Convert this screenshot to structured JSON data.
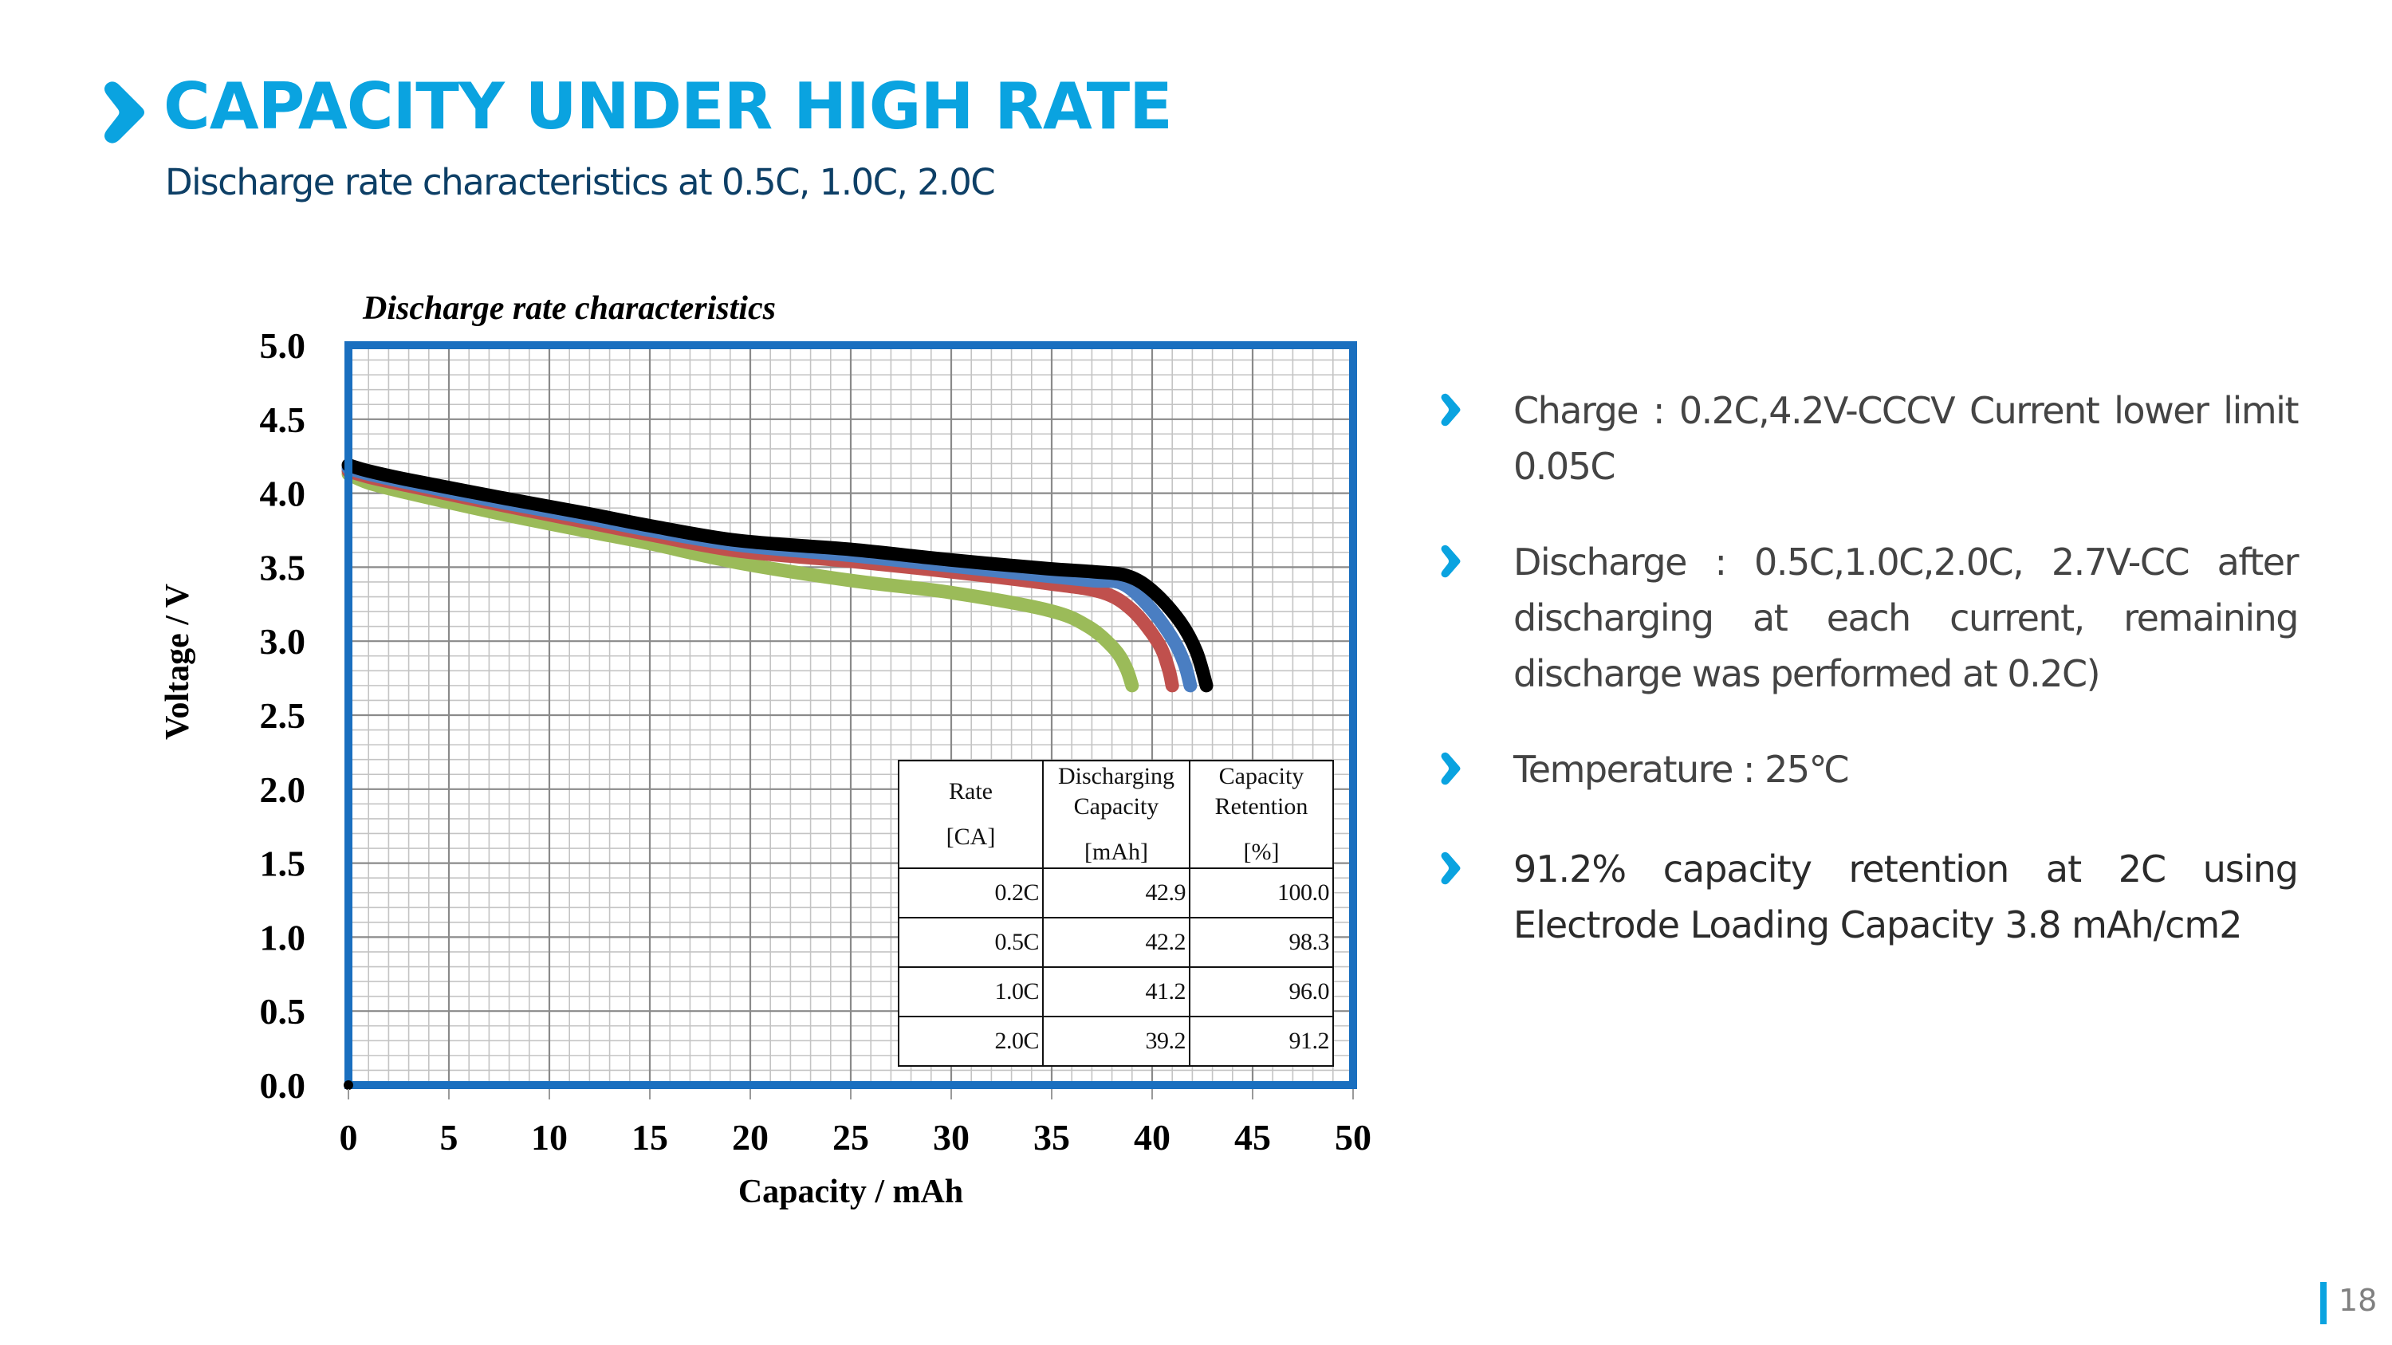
{
  "slide": {
    "title": "CAPACITY UNDER HIGH RATE",
    "subtitle": "Discharge rate characteristics at 0.5C, 1.0C, 2.0C",
    "title_icon": "chevron-right-icon",
    "accent_color": "#0aa3e0",
    "subtitle_color": "#0d3f66",
    "page_number": "18"
  },
  "bullets": [
    {
      "text": "Charge : 0.2C,4.2V-CCCV  Current lower limit 0.05C",
      "icon": "chevron-right-icon"
    },
    {
      "text": "Discharge : 0.5C,1.0C,2.0C, 2.7V-CC after discharging at each current, remaining discharge was performed at 0.2C)",
      "icon": "chevron-right-icon"
    },
    {
      "text": "Temperature : 25℃",
      "icon": "chevron-right-icon"
    },
    {
      "text": "91.2% capacity retention at 2C using Electrode Loading Capacity 3.8 mAh/cm2",
      "icon": "chevron-right-icon"
    }
  ],
  "results_table": {
    "headers": [
      {
        "label": "Rate",
        "unit": "[CA]"
      },
      {
        "label": "Discharging Capacity",
        "unit": "[mAh]"
      },
      {
        "label": "Capacity Retention",
        "unit": "[%]"
      }
    ],
    "rows": [
      [
        "0.2C",
        "42.9",
        "100.0"
      ],
      [
        "0.5C",
        "42.2",
        "98.3"
      ],
      [
        "1.0C",
        "41.2",
        "96.0"
      ],
      [
        "2.0C",
        "39.2",
        "91.2"
      ]
    ]
  },
  "chart_data": {
    "type": "line",
    "title": "Discharge rate characteristics",
    "xlabel": "Capacity / mAh",
    "ylabel": "Voltage / V",
    "xlim": [
      0,
      50
    ],
    "ylim": [
      0,
      5.0
    ],
    "xticks": [
      0,
      5,
      10,
      15,
      20,
      25,
      30,
      35,
      40,
      45,
      50
    ],
    "yticks": [
      0.0,
      0.5,
      1.0,
      1.5,
      2.0,
      2.5,
      3.0,
      3.5,
      4.0,
      4.5,
      5.0
    ],
    "xtick_labels": [
      "0",
      "5",
      "10",
      "15",
      "20",
      "25",
      "30",
      "35",
      "40",
      "45",
      "50"
    ],
    "ytick_labels": [
      "0.0",
      "0.5",
      "1.0",
      "1.5",
      "2.0",
      "2.5",
      "3.0",
      "3.5",
      "4.0",
      "4.5",
      "5.0"
    ],
    "grid": "major-and-minor",
    "minor_step_x": 1,
    "minor_step_y": 0.1,
    "frame_color": "#1a6fbf",
    "legend": "none (inset table bottom-right)",
    "series": [
      {
        "name": "0.2C",
        "color": "#000000",
        "x": [
          0,
          1,
          3,
          7.6,
          12,
          15,
          19.4,
          25,
          29.9,
          34.8,
          37,
          38.8,
          40.1,
          41.4,
          42.2,
          42.7
        ],
        "y": [
          4.19,
          4.15,
          4.09,
          3.97,
          3.86,
          3.78,
          3.68,
          3.62,
          3.55,
          3.49,
          3.47,
          3.44,
          3.33,
          3.13,
          2.93,
          2.7
        ]
      },
      {
        "name": "0.5C",
        "color": "#4a7ec2",
        "x": [
          0,
          1,
          3,
          7.6,
          12,
          15,
          19.4,
          25,
          29.9,
          34.8,
          37,
          38.5,
          39.8,
          41.0,
          41.6,
          41.9
        ],
        "y": [
          4.17,
          4.13,
          4.07,
          3.94,
          3.83,
          3.75,
          3.65,
          3.58,
          3.51,
          3.44,
          3.41,
          3.39,
          3.24,
          3.02,
          2.85,
          2.7
        ]
      },
      {
        "name": "1.0C",
        "color": "#c0504d",
        "x": [
          0,
          1,
          3,
          7.6,
          12,
          15,
          19.4,
          25,
          29.9,
          34.8,
          37.5,
          39.0,
          40.3,
          40.8,
          41.0
        ],
        "y": [
          4.15,
          4.11,
          4.05,
          3.92,
          3.8,
          3.72,
          3.61,
          3.54,
          3.47,
          3.39,
          3.33,
          3.21,
          2.99,
          2.82,
          2.7
        ]
      },
      {
        "name": "2.0C",
        "color": "#9bbb59",
        "x": [
          0,
          1,
          3,
          7.6,
          12,
          15,
          19.4,
          25,
          29.9,
          34.8,
          36.8,
          38.1,
          38.7,
          39.0
        ],
        "y": [
          4.13,
          4.07,
          4.0,
          3.86,
          3.74,
          3.66,
          3.53,
          3.41,
          3.33,
          3.21,
          3.1,
          2.95,
          2.82,
          2.7
        ]
      }
    ]
  }
}
